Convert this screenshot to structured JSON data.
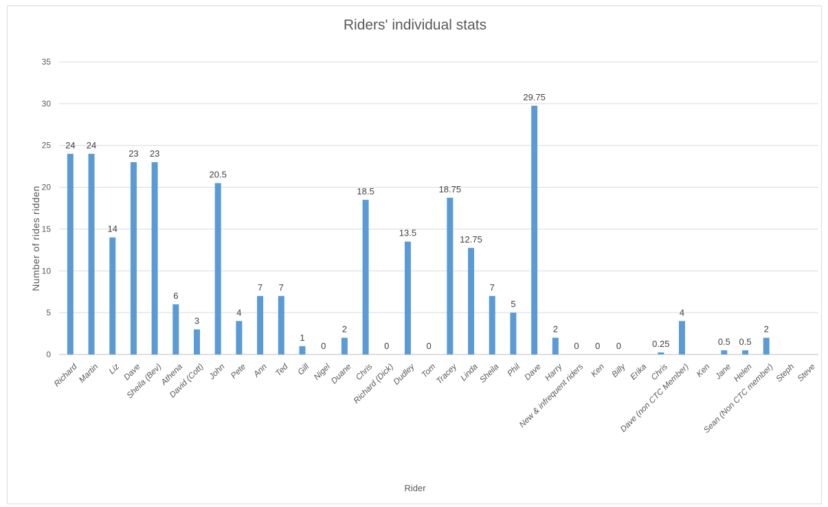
{
  "chart_data": {
    "type": "bar",
    "title": "Riders' individual stats",
    "xlabel": "Rider",
    "ylabel": "Number of rides ridden",
    "ylim": [
      0,
      35
    ],
    "yticks": [
      0,
      5,
      10,
      15,
      20,
      25,
      30,
      35
    ],
    "grid": true,
    "bar_color": "#5b9bd5",
    "categories": [
      "Richard",
      "Martin",
      "Liz",
      "Dave",
      "Sheila (Bev)",
      "Athena",
      "David (Cott)",
      "John",
      "Pete",
      "Ann",
      "Ted",
      "Gill",
      "Nigel",
      "Duane",
      "Chris",
      "Richard (Dick)",
      "Dudley",
      "Tom",
      "Tracey",
      "Linda",
      "Sheila",
      "Phil",
      "Dave",
      "Harry",
      "New & infrequent riders",
      "Ken",
      "Billy",
      "Erika",
      "Chris",
      "Dave (non CTC Member)",
      "Ken",
      "Jane",
      "Helen",
      "Sean (Non CTC member)",
      "Steph",
      "Steve"
    ],
    "values": [
      24,
      24,
      14,
      23,
      23,
      6,
      3,
      20.5,
      4,
      7,
      7,
      1,
      0,
      2,
      18.5,
      0,
      13.5,
      0,
      18.75,
      12.75,
      7,
      5,
      29.75,
      2,
      0,
      0,
      null,
      null,
      0.25,
      4,
      null,
      0.5,
      0.5,
      2,
      null,
      null
    ],
    "data_labels": [
      "24",
      "24",
      "14",
      "23",
      "23",
      "6",
      "3",
      "20.5",
      "4",
      "7",
      "7",
      "1",
      "0",
      "2",
      "18.5",
      "0",
      "13.5",
      "0",
      "18.75",
      "12.75",
      "7",
      "5",
      "29.75",
      "2",
      "0",
      "0",
      "0",
      "",
      "0.25",
      "4",
      "",
      "0.5",
      "0.5",
      "2",
      "",
      ""
    ]
  }
}
